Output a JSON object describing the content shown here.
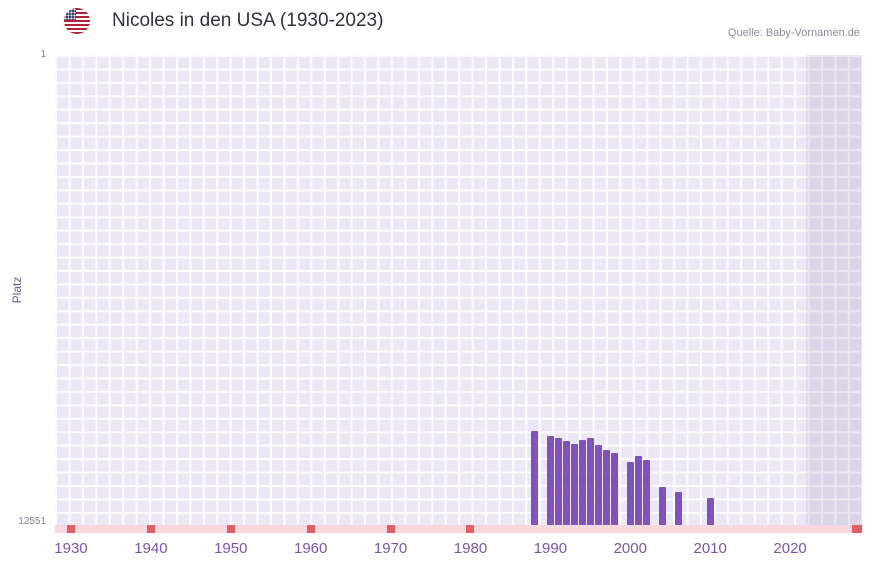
{
  "header": {
    "title": "Nicoles in den USA (1930-2023)",
    "source": "Quelle: Baby-Vornamen.de",
    "flag": "us-flag-icon"
  },
  "chart_data": {
    "type": "bar",
    "title": "Nicoles in den USA (1930-2023)",
    "xlabel": "",
    "ylabel": "Platz",
    "legend_position": "none",
    "grid": true,
    "y_axis": {
      "min": 1,
      "max": 12551,
      "inverted": true,
      "top_label": "1",
      "bottom_label": "12551"
    },
    "x_axis": {
      "min": 1928,
      "max": 2029,
      "ticks": [
        1930,
        1940,
        1950,
        1960,
        1970,
        1980,
        1990,
        2000,
        2010,
        2020
      ]
    },
    "series": [
      {
        "name": "Platz",
        "color": "#8152bc",
        "points": [
          {
            "year": 1988,
            "rank": 10050
          },
          {
            "year": 1990,
            "rank": 10180
          },
          {
            "year": 1991,
            "rank": 10230
          },
          {
            "year": 1992,
            "rank": 10310
          },
          {
            "year": 1993,
            "rank": 10390
          },
          {
            "year": 1994,
            "rank": 10280
          },
          {
            "year": 1995,
            "rank": 10230
          },
          {
            "year": 1996,
            "rank": 10410
          },
          {
            "year": 1997,
            "rank": 10550
          },
          {
            "year": 1998,
            "rank": 10630
          },
          {
            "year": 2000,
            "rank": 10870
          },
          {
            "year": 2001,
            "rank": 10720
          },
          {
            "year": 2002,
            "rank": 10820
          },
          {
            "year": 2004,
            "rank": 11540
          },
          {
            "year": 2006,
            "rank": 11670
          },
          {
            "year": 2010,
            "rank": 11830
          }
        ]
      }
    ],
    "no_data_marks": {
      "color": "#e25f63",
      "years": [
        1930,
        1940,
        1950,
        1960,
        1970,
        1980
      ],
      "right_edge": true
    },
    "baseline": {
      "color": "#f6d8de"
    },
    "future_band": {
      "start_year": 2022,
      "color": "rgba(136,122,170,0.16)"
    },
    "plot_background": "#ebe7f4"
  }
}
